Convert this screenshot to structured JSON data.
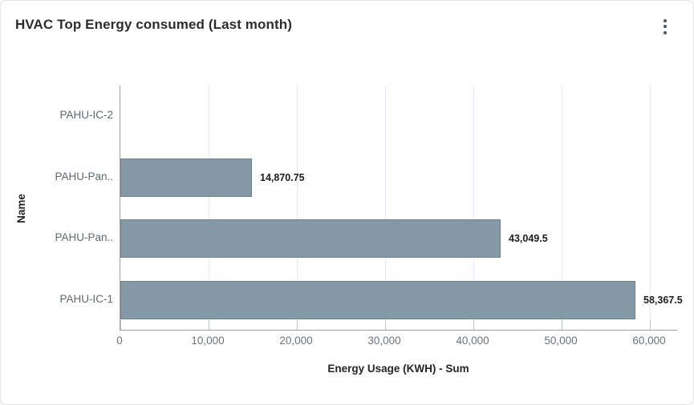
{
  "card": {
    "title": "HVAC Top Energy consumed (Last month)",
    "menu_icon": "kebab-menu-icon"
  },
  "chart_data": {
    "type": "bar",
    "orientation": "horizontal",
    "title": "HVAC Top Energy consumed (Last month)",
    "xlabel": "Energy Usage (KWH) - Sum",
    "ylabel": "Name",
    "categories": [
      "PAHU-IC-2",
      "PAHU-Pan..",
      "PAHU-Pan..",
      "PAHU-IC-1"
    ],
    "values": [
      0,
      14870.75,
      43049.5,
      58367.5
    ],
    "value_labels": [
      "",
      "14,870.75",
      "43,049.5",
      "58,367.5"
    ],
    "x_ticks": [
      0,
      10000,
      20000,
      30000,
      40000,
      50000,
      60000
    ],
    "x_tick_labels": [
      "0",
      "10,000",
      "20,000",
      "30,000",
      "40,000",
      "50,000",
      "60,000"
    ],
    "xlim": [
      0,
      63180
    ],
    "grid": true,
    "legend": false,
    "colors": {
      "bar_fill": "#8598a6",
      "bar_border": "#6e828f",
      "gridline": "#e8e9f2",
      "axis_line": "#9aa2a8",
      "category_label": "#5c6a74",
      "tick_label": "#68737d",
      "value_label": "#1c1c1c",
      "menu_accent": "#3f5c6e"
    }
  }
}
